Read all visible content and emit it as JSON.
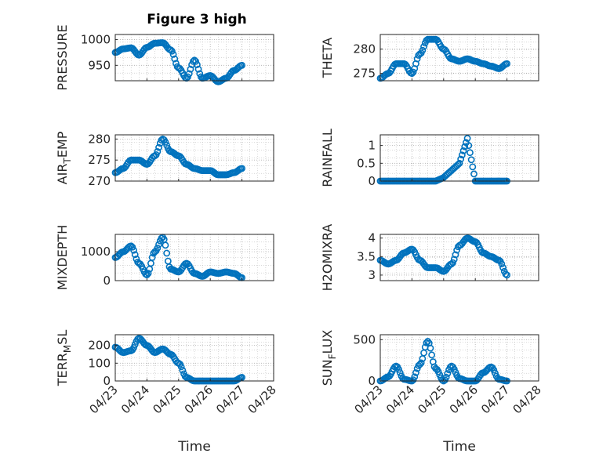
{
  "figure_title": "Figure 3 high",
  "colors": {
    "marker": "#0072BD",
    "axis": "#262626",
    "grid": "#b0b0b0"
  },
  "chart_data": [
    {
      "type": "scatter",
      "title": "Figure 3 high",
      "ylabel": "PRESSURE",
      "xlabel": "",
      "x": [
        "04/23",
        "04/23 06h",
        "04/23 12h",
        "04/23 18h",
        "04/24",
        "04/24 06h",
        "04/24 12h",
        "04/24 18h",
        "04/25",
        "04/25 06h",
        "04/25 12h",
        "04/25 18h",
        "04/26",
        "04/26 06h",
        "04/26 12h",
        "04/26 18h",
        "04/27"
      ],
      "y": [
        975,
        982,
        984,
        970,
        985,
        993,
        994,
        980,
        945,
        925,
        960,
        925,
        930,
        918,
        925,
        940,
        950
      ],
      "xlim": [
        "04/23",
        "04/28"
      ],
      "ylim": [
        920,
        1010
      ],
      "yticks": [
        "950",
        "1000"
      ],
      "xticks": [],
      "grid": true
    },
    {
      "type": "scatter",
      "title": "",
      "ylabel": "THETA",
      "xlabel": "",
      "x": [
        "04/23",
        "04/23 06h",
        "04/23 12h",
        "04/23 18h",
        "04/24",
        "04/24 06h",
        "04/24 12h",
        "04/24 18h",
        "04/25",
        "04/25 06h",
        "04/25 12h",
        "04/25 18h",
        "04/26",
        "04/26 06h",
        "04/26 12h",
        "04/26 18h",
        "04/27"
      ],
      "y": [
        274,
        275,
        277,
        277,
        275,
        279,
        282,
        282,
        280,
        278,
        277.5,
        278,
        277.5,
        277,
        276.5,
        276,
        277
      ],
      "xlim": [
        "04/23",
        "04/28"
      ],
      "ylim": [
        273.5,
        283
      ],
      "yticks": [
        "275",
        "280"
      ],
      "xticks": [],
      "grid": true
    },
    {
      "type": "scatter",
      "title": "",
      "ylabel": "AIR_TEMP",
      "xlabel": "",
      "x": [
        "04/23",
        "04/23 06h",
        "04/23 12h",
        "04/23 18h",
        "04/24",
        "04/24 06h",
        "04/24 12h",
        "04/24 18h",
        "04/25",
        "04/25 06h",
        "04/25 12h",
        "04/25 18h",
        "04/26",
        "04/26 06h",
        "04/26 12h",
        "04/26 18h",
        "04/27"
      ],
      "y": [
        272,
        273,
        275,
        275,
        274,
        276,
        280,
        277,
        276,
        274,
        273,
        272.5,
        272.5,
        271.5,
        271.5,
        272,
        273
      ],
      "xlim": [
        "04/23",
        "04/28"
      ],
      "ylim": [
        270,
        281
      ],
      "yticks": [
        "270",
        "275",
        "280"
      ],
      "xticks": [],
      "grid": true
    },
    {
      "type": "scatter",
      "title": "",
      "ylabel": "RAINFALL",
      "xlabel": "",
      "x": [
        "04/23",
        "04/23 06h",
        "04/23 12h",
        "04/23 18h",
        "04/24",
        "04/24 06h",
        "04/24 12h",
        "04/24 18h",
        "04/25",
        "04/25 06h",
        "04/25 12h",
        "04/25 18h",
        "04/26",
        "04/26 06h",
        "04/26 12h",
        "04/26 18h",
        "04/27"
      ],
      "y": [
        0,
        0,
        0,
        0,
        0,
        0,
        0,
        0,
        0.1,
        0.3,
        0.5,
        1.2,
        0,
        0,
        0,
        0,
        0
      ],
      "xlim": [
        "04/23",
        "04/28"
      ],
      "ylim": [
        0,
        1.3
      ],
      "yticks": [
        "0",
        "0.5",
        "1"
      ],
      "xticks": [],
      "grid": true
    },
    {
      "type": "scatter",
      "title": "",
      "ylabel": "MIXDEPTH",
      "xlabel": "",
      "x": [
        "04/23",
        "04/23 06h",
        "04/23 12h",
        "04/23 18h",
        "04/24",
        "04/24 06h",
        "04/24 12h",
        "04/24 18h",
        "04/25",
        "04/25 06h",
        "04/25 12h",
        "04/25 18h",
        "04/26",
        "04/26 06h",
        "04/26 12h",
        "04/26 18h",
        "04/27"
      ],
      "y": [
        800,
        1000,
        1200,
        600,
        200,
        1000,
        1500,
        400,
        300,
        600,
        250,
        150,
        300,
        250,
        300,
        250,
        100
      ],
      "xlim": [
        "04/23",
        "04/28"
      ],
      "ylim": [
        0,
        1600
      ],
      "yticks": [
        "0",
        "1000"
      ],
      "xticks": [],
      "grid": true
    },
    {
      "type": "scatter",
      "title": "",
      "ylabel": "H2OMIXRA",
      "xlabel": "",
      "x": [
        "04/23",
        "04/23 06h",
        "04/23 12h",
        "04/23 18h",
        "04/24",
        "04/24 06h",
        "04/24 12h",
        "04/24 18h",
        "04/25",
        "04/25 06h",
        "04/25 12h",
        "04/25 18h",
        "04/26",
        "04/26 06h",
        "04/26 12h",
        "04/26 18h",
        "04/27"
      ],
      "y": [
        3.4,
        3.3,
        3.4,
        3.6,
        3.7,
        3.4,
        3.2,
        3.2,
        3.1,
        3.3,
        3.8,
        4.0,
        3.9,
        3.6,
        3.5,
        3.4,
        3.0
      ],
      "xlim": [
        "04/23",
        "04/28"
      ],
      "ylim": [
        2.85,
        4.1
      ],
      "yticks": [
        "3",
        "3.5",
        "4"
      ],
      "xticks": [],
      "grid": true
    },
    {
      "type": "scatter",
      "title": "",
      "ylabel": "TERR_MSL",
      "xlabel": "Time",
      "x": [
        "04/23",
        "04/23 06h",
        "04/23 12h",
        "04/23 18h",
        "04/24",
        "04/24 06h",
        "04/24 12h",
        "04/24 18h",
        "04/25",
        "04/25 06h",
        "04/25 12h",
        "04/25 18h",
        "04/26",
        "04/26 06h",
        "04/26 12h",
        "04/26 18h",
        "04/27"
      ],
      "y": [
        190,
        160,
        170,
        240,
        200,
        160,
        180,
        150,
        100,
        20,
        0,
        0,
        0,
        0,
        0,
        0,
        20
      ],
      "xlim": [
        "04/23",
        "04/28"
      ],
      "ylim": [
        0,
        260
      ],
      "yticks": [
        "0",
        "100",
        "200"
      ],
      "xticks": [
        "04/23",
        "04/24",
        "04/25",
        "04/26",
        "04/27",
        "04/28"
      ],
      "grid": true
    },
    {
      "type": "scatter",
      "title": "",
      "ylabel": "SUN_FLUX",
      "xlabel": "Time",
      "x": [
        "04/23",
        "04/23 06h",
        "04/23 12h",
        "04/23 18h",
        "04/24",
        "04/24 06h",
        "04/24 12h",
        "04/24 18h",
        "04/25",
        "04/25 06h",
        "04/25 12h",
        "04/25 18h",
        "04/26",
        "04/26 06h",
        "04/26 12h",
        "04/26 18h",
        "04/27"
      ],
      "y": [
        0,
        50,
        180,
        20,
        0,
        200,
        480,
        150,
        0,
        180,
        30,
        0,
        0,
        100,
        170,
        20,
        0
      ],
      "xlim": [
        "04/23",
        "04/28"
      ],
      "ylim": [
        0,
        560
      ],
      "yticks": [
        "0",
        "500"
      ],
      "xticks": [
        "04/23",
        "04/24",
        "04/25",
        "04/26",
        "04/27",
        "04/28"
      ],
      "grid": true
    }
  ]
}
